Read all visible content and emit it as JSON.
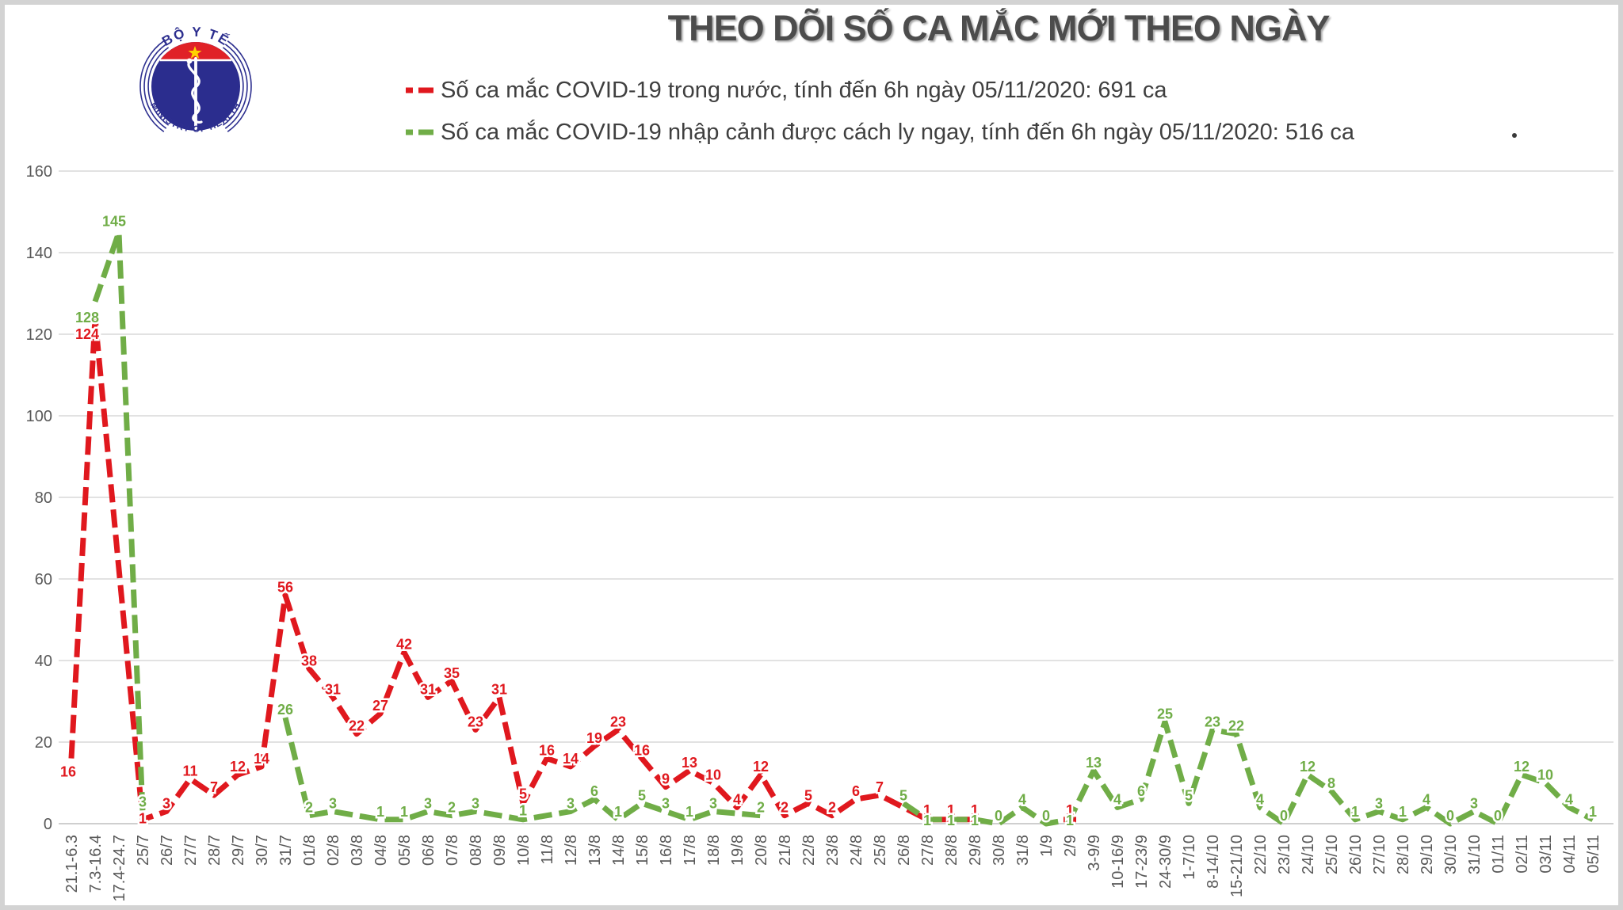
{
  "title": "THEO DÕI SỐ CA MẮC MỚI THEO NGÀY",
  "logo": {
    "top_text": "BỘ Y TẾ",
    "bottom_text": "MINISTRY OF HEALTH"
  },
  "legend": [
    {
      "label": "Số ca mắc COVID-19 trong nước, tính đến 6h ngày 05/11/2020: 691 ca",
      "color": "#e0181e"
    },
    {
      "label": "Số ca mắc COVID-19 nhập cảnh được cách ly ngay, tính đến 6h ngày 05/11/2020: 516 ca",
      "color": "#70ad47"
    }
  ],
  "stray_dot": ".",
  "colors": {
    "domestic_red": "#e0181e",
    "imported_green": "#70ad47",
    "title_gray": "#4c4c4c",
    "axis_text_gray": "#595959",
    "gridline_gray": "#d9d9d9",
    "axis_line_gray": "#bfbfbf",
    "logo_blue": "#2d2f8f",
    "logo_red": "#e02127",
    "logo_star_yellow": "#ffd200"
  },
  "chart_data": {
    "type": "line",
    "title": "THEO DÕI SỐ CA MẮC MỚI THEO NGÀY",
    "xlabel": "",
    "ylabel": "",
    "ylim": [
      0,
      160
    ],
    "ytick_step": 20,
    "grid": true,
    "legend_position": "top",
    "line_style": "dashed",
    "point_labels": true,
    "categories": [
      "21.1-6.3",
      "7.3-16.4",
      "17.4-24.7",
      "25/7",
      "26/7",
      "27/7",
      "28/7",
      "29/7",
      "30/7",
      "31/7",
      "01/8",
      "02/8",
      "03/8",
      "04/8",
      "05/8",
      "06/8",
      "07/8",
      "08/8",
      "09/8",
      "10/8",
      "11/8",
      "12/8",
      "13/8",
      "14/8",
      "15/8",
      "16/8",
      "17/8",
      "18/8",
      "19/8",
      "20/8",
      "21/8",
      "22/8",
      "23/8",
      "24/8",
      "25/8",
      "26/8",
      "27/8",
      "28/8",
      "29/8",
      "30/8",
      "31/8",
      "1/9",
      "2/9",
      "3-9/9",
      "10-16/9",
      "17-23/9",
      "24-30/9",
      "1-7/10",
      "8-14/10",
      "15-21/10",
      "22/10",
      "23/10",
      "24/10",
      "25/10",
      "26/10",
      "27/10",
      "28/10",
      "29/10",
      "30/10",
      "31/10",
      "01/11",
      "02/11",
      "03/11",
      "04/11",
      "05/11"
    ],
    "series": [
      {
        "name": "Số ca mắc COVID-19 trong nước",
        "color": "#e0181e",
        "total": 691,
        "values": [
          16,
          124,
          null,
          1,
          3,
          11,
          7,
          12,
          14,
          56,
          38,
          31,
          22,
          27,
          42,
          31,
          35,
          23,
          31,
          5,
          16,
          14,
          19,
          23,
          16,
          9,
          13,
          10,
          4,
          12,
          2,
          5,
          2,
          6,
          7,
          null,
          1,
          1,
          1,
          null,
          null,
          null,
          1,
          null,
          null,
          null,
          null,
          null,
          null,
          null,
          null,
          null,
          null,
          null,
          null,
          null,
          null,
          null,
          null,
          null,
          null,
          null,
          null,
          null,
          null
        ]
      },
      {
        "name": "Số ca mắc COVID-19 nhập cảnh được cách ly ngay",
        "color": "#70ad47",
        "total": 516,
        "values": [
          null,
          128,
          145,
          3,
          null,
          null,
          null,
          null,
          null,
          26,
          2,
          3,
          null,
          1,
          1,
          3,
          2,
          3,
          null,
          1,
          null,
          3,
          6,
          1,
          5,
          3,
          1,
          3,
          null,
          2,
          null,
          null,
          null,
          null,
          null,
          5,
          1,
          1,
          1,
          0,
          4,
          0,
          1,
          13,
          4,
          6,
          25,
          5,
          23,
          22,
          4,
          0,
          12,
          8,
          1,
          3,
          1,
          4,
          0,
          3,
          0,
          12,
          10,
          4,
          1
        ]
      }
    ]
  }
}
